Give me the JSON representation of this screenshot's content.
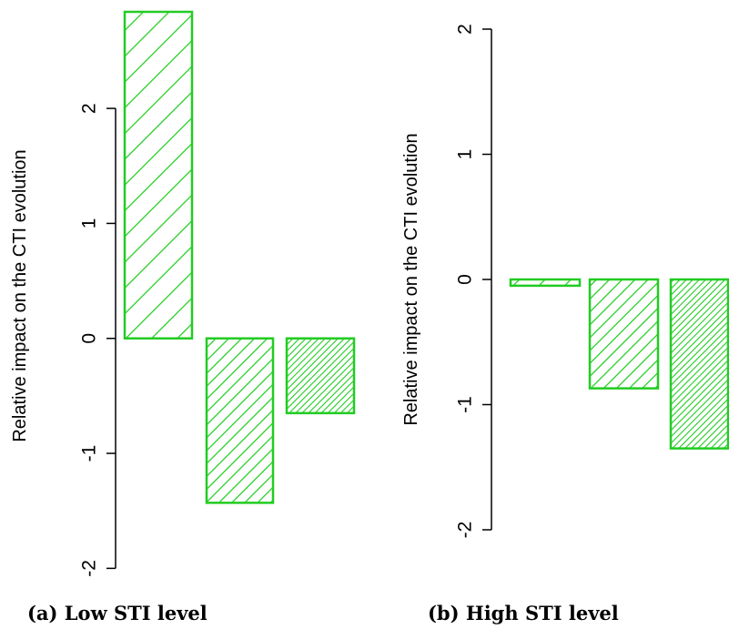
{
  "chart_data": [
    {
      "type": "bar",
      "ylabel": "Relative impact on the CTI evolution",
      "caption": "(a) Low STI level",
      "values": [
        2.84,
        -1.43,
        -0.65
      ],
      "color": "#22cc22",
      "ylim": [
        -2.1,
        2.84
      ],
      "yticks": [
        -2,
        -1,
        0,
        1,
        2
      ]
    },
    {
      "type": "bar",
      "ylabel": "Relative impact on the CTI evolution",
      "caption": "(b) High STI level",
      "values": [
        -0.05,
        -0.87,
        -1.35
      ],
      "color": "#22cc22",
      "ylim": [
        -2.2,
        2.2
      ],
      "yticks": [
        -2,
        -1,
        0,
        1,
        2
      ]
    }
  ]
}
